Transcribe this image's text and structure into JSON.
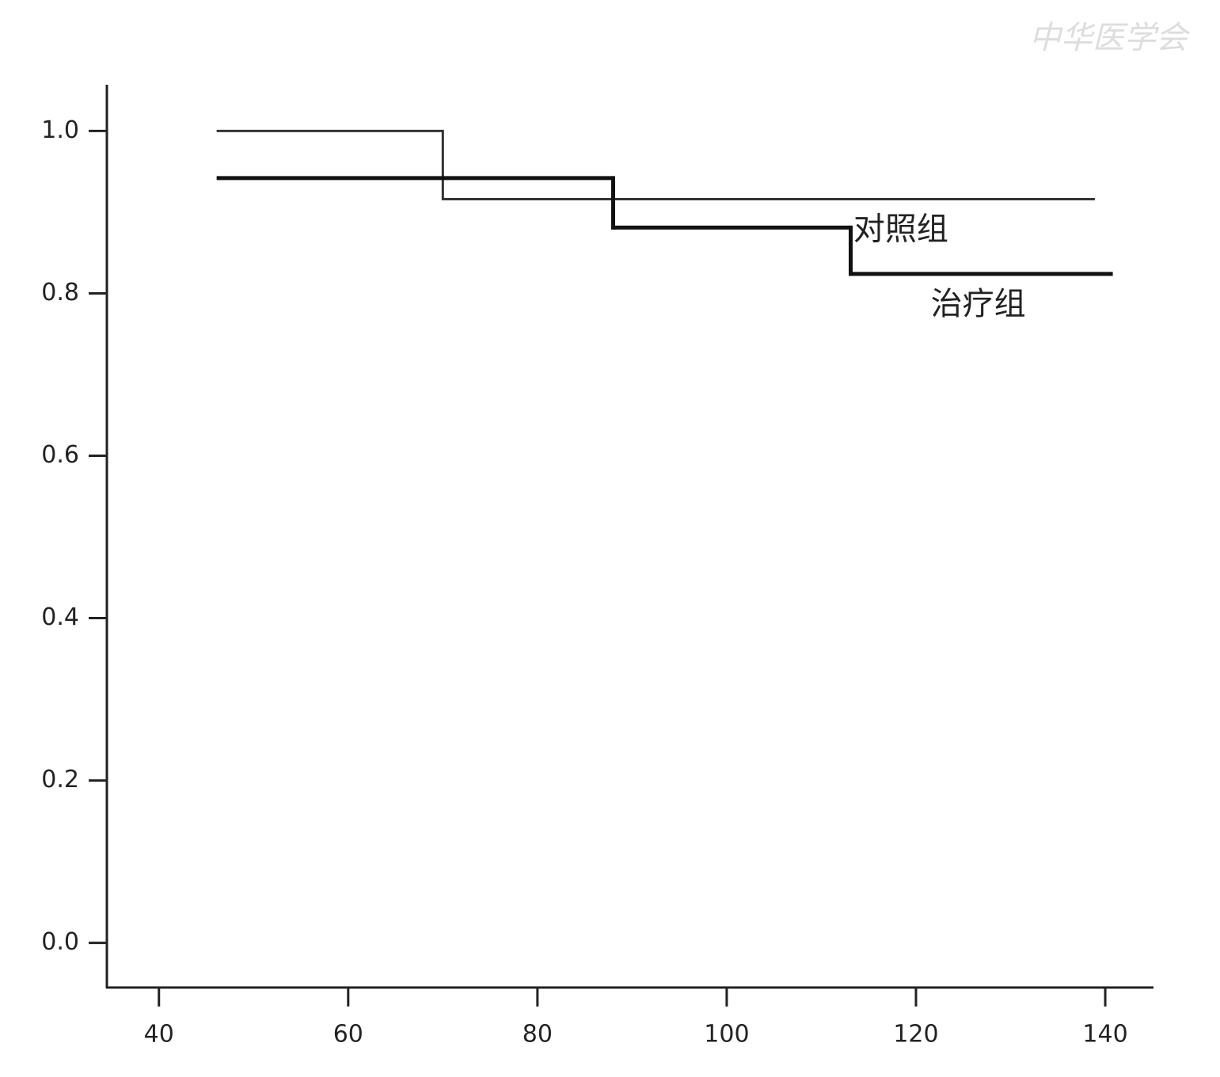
{
  "chart_data": {
    "type": "step",
    "watermark": "中华医学会",
    "xlim": [
      34.5,
      145.1
    ],
    "xticks": [
      40,
      60,
      80,
      100,
      120,
      140
    ],
    "ylim": [
      -0.055,
      1.057
    ],
    "yticks": [
      {
        "value": 0,
        "label": "0.0"
      },
      0.2,
      0.4,
      0.6,
      0.8,
      {
        "value": 1,
        "label": "1.0"
      }
    ],
    "series": [
      {
        "name": "对照组",
        "color": "#333333",
        "width": 3,
        "x": [
          46.1,
          70.0
        ],
        "x_end": [
          70.0,
          138.9
        ],
        "values": [
          1.0,
          0.916
        ]
      },
      {
        "name": "治疗组",
        "color": "#111111",
        "width": 5,
        "x": [
          46.1,
          88.0,
          113.1
        ],
        "x_end": [
          88.0,
          113.1,
          140.8
        ],
        "values": [
          0.942,
          0.881,
          0.824
        ]
      }
    ]
  }
}
